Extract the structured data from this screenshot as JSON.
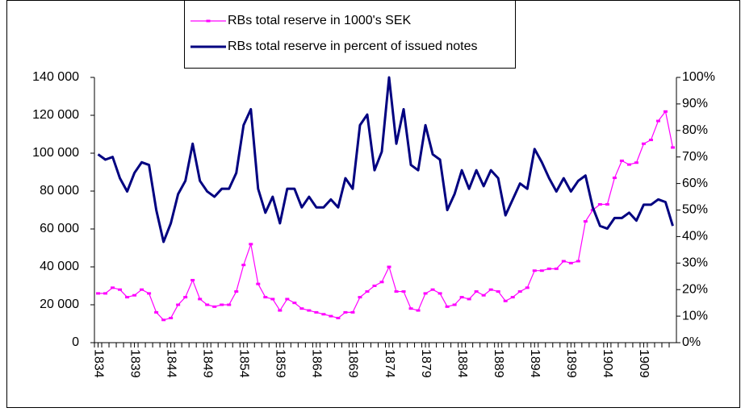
{
  "chart_data": {
    "type": "line",
    "x": [
      1834,
      1835,
      1836,
      1837,
      1838,
      1839,
      1840,
      1841,
      1842,
      1843,
      1844,
      1845,
      1846,
      1847,
      1848,
      1849,
      1850,
      1851,
      1852,
      1853,
      1854,
      1855,
      1856,
      1857,
      1858,
      1859,
      1860,
      1861,
      1862,
      1863,
      1864,
      1865,
      1866,
      1867,
      1868,
      1869,
      1870,
      1871,
      1872,
      1873,
      1874,
      1875,
      1876,
      1877,
      1878,
      1879,
      1880,
      1881,
      1882,
      1883,
      1884,
      1885,
      1886,
      1887,
      1888,
      1889,
      1890,
      1891,
      1892,
      1893,
      1894,
      1895,
      1896,
      1897,
      1898,
      1899,
      1900,
      1901,
      1902,
      1903,
      1904,
      1905,
      1906,
      1907,
      1908,
      1909,
      1910,
      1911,
      1912,
      1913
    ],
    "series": [
      {
        "name": "RBs total reserve in 1000's SEK",
        "color": "#ff00ff",
        "values": [
          26000,
          26000,
          29000,
          28000,
          24000,
          25000,
          28000,
          26000,
          16000,
          12000,
          13000,
          20000,
          24000,
          33000,
          23000,
          20000,
          19000,
          20000,
          20000,
          27000,
          41000,
          52000,
          31000,
          24000,
          23000,
          17000,
          23000,
          21000,
          18000,
          17000,
          16000,
          15000,
          14000,
          13000,
          16000,
          16000,
          24000,
          27000,
          30000,
          32000,
          40000,
          27000,
          27000,
          18000,
          17000,
          26000,
          28000,
          26000,
          19000,
          20000,
          24000,
          23000,
          27000,
          25000,
          28000,
          27000,
          22000,
          24000,
          27000,
          29000,
          38000,
          38000,
          39000,
          39000,
          43000,
          42000,
          43000,
          64000,
          70000,
          73000,
          73000,
          87000,
          96000,
          94000,
          95000,
          105000,
          107000,
          117000,
          122000,
          103000
        ]
      },
      {
        "name": "RBs total reserve in percent of issued notes",
        "color": "#000080",
        "axis": "y2",
        "values": [
          71,
          69,
          70,
          62,
          57,
          64,
          68,
          67,
          50,
          38,
          45,
          56,
          61,
          75,
          61,
          57,
          55,
          58,
          58,
          64,
          82,
          88,
          58,
          49,
          55,
          45,
          58,
          58,
          51,
          55,
          51,
          51,
          54,
          51,
          62,
          58,
          82,
          86,
          65,
          72,
          100,
          75,
          88,
          67,
          65,
          82,
          71,
          69,
          50,
          56,
          65,
          58,
          65,
          59,
          65,
          62,
          48,
          54,
          60,
          58,
          73,
          68,
          62,
          57,
          62,
          57,
          61,
          63,
          51,
          44,
          43,
          47,
          47,
          49,
          46,
          52,
          52,
          54,
          53,
          44
        ]
      }
    ],
    "xlim": [
      1833.5,
      1913.5
    ],
    "xticks": [
      1834,
      1839,
      1844,
      1849,
      1854,
      1859,
      1864,
      1869,
      1874,
      1879,
      1884,
      1889,
      1894,
      1899,
      1904,
      1909
    ],
    "ylim": [
      0,
      140000
    ],
    "yticks": [
      0,
      {
        "value": 20000,
        "label": "20 000"
      },
      {
        "value": 40000,
        "label": "40 000"
      },
      {
        "value": 60000,
        "label": "60 000"
      },
      {
        "value": 80000,
        "label": "80 000"
      },
      {
        "value": 100000,
        "label": "100 000"
      },
      {
        "value": 120000,
        "label": "120 000"
      },
      {
        "value": 140000,
        "label": "140 000"
      }
    ],
    "y2lim": [
      0,
      100
    ],
    "y2ticks": [
      {
        "value": 0,
        "label": "0%"
      },
      {
        "value": 10,
        "label": "10%"
      },
      {
        "value": 20,
        "label": "20%"
      },
      {
        "value": 30,
        "label": "30%"
      },
      {
        "value": 40,
        "label": "40%"
      },
      {
        "value": 50,
        "label": "50%"
      },
      {
        "value": 60,
        "label": "60%"
      },
      {
        "value": 70,
        "label": "70%"
      },
      {
        "value": 80,
        "label": "80%"
      },
      {
        "value": 90,
        "label": "90%"
      },
      {
        "value": 100,
        "label": "100%"
      }
    ]
  }
}
